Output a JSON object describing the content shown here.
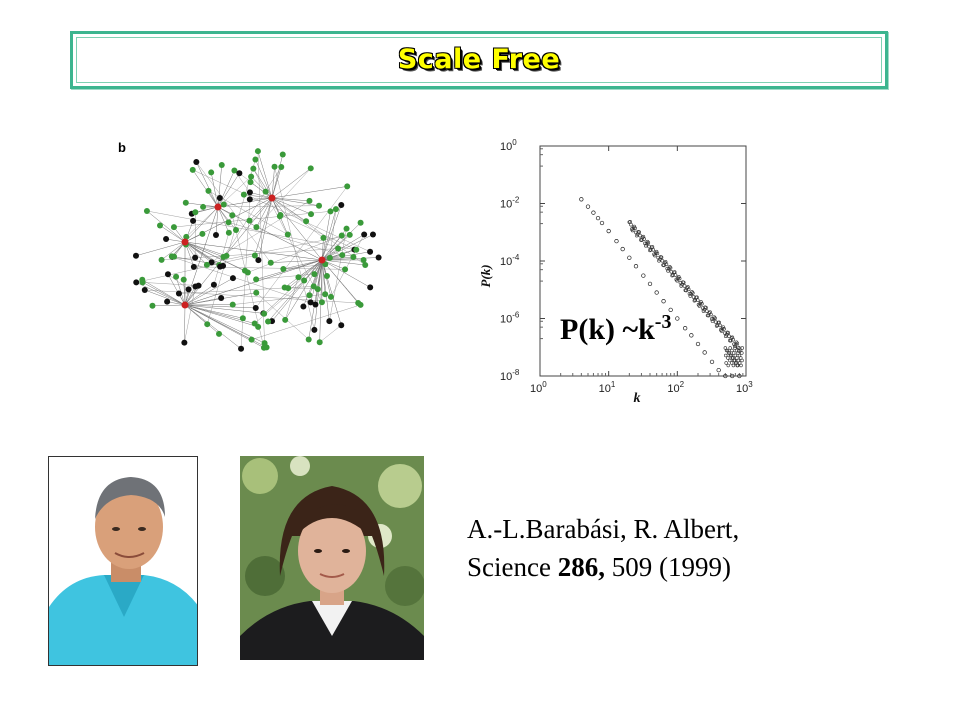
{
  "slide": {
    "title": "Scale Free",
    "panel_label": "b",
    "formula_base": "P(k) ~k",
    "formula_exponent": "-3",
    "citation": {
      "authors": "A.-L.Barabási,  R. Albert,",
      "journal": "Science ",
      "volume": "286,",
      "rest": " 509 (1999)"
    }
  },
  "network": {
    "node_colors": {
      "green": "#3a9a3a",
      "black": "#111111",
      "hub": "#cc2222"
    }
  },
  "plot": {
    "y_ticks": [
      "10",
      "10",
      "10",
      "10",
      "10"
    ],
    "y_tick_exps": [
      "0",
      "-2",
      "-4",
      "-6",
      "-8"
    ],
    "x_ticks": [
      "10",
      "10",
      "10",
      "10"
    ],
    "x_tick_exps": [
      "0",
      "1",
      "2",
      "3"
    ],
    "ylabel": "P(k)",
    "xlabel": "k"
  },
  "chart_data": {
    "type": "scatter",
    "title": "",
    "xlabel": "k",
    "ylabel": "P(k)",
    "x_scale": "log",
    "y_scale": "log",
    "xlim": [
      1,
      1000
    ],
    "ylim": [
      1e-08,
      1
    ],
    "annotation": "P(k) ~k-3",
    "series": [
      {
        "x": [
          4,
          5,
          6,
          7,
          8,
          10,
          13,
          16,
          20,
          25,
          32,
          40,
          50,
          63,
          80,
          100,
          130,
          160,
          200,
          250,
          320,
          400,
          500,
          630,
          800
        ],
        "y": [
          0.014,
          0.0078,
          0.0048,
          0.0031,
          0.0021,
          0.0011,
          0.00049,
          0.00026,
          0.00013,
          6.6e-05,
          3.1e-05,
          1.6e-05,
          8e-06,
          4e-06,
          2e-06,
          1e-06,
          4.6e-07,
          2.6e-07,
          1.3e-07,
          6.6e-08,
          3.1e-08,
          1.6e-08,
          1e-08,
          1e-08,
          1e-08
        ]
      }
    ]
  },
  "photos": {
    "left": {
      "bg": "#ffffff",
      "shirt": "#3fc4e0",
      "skin": "#d9a07a",
      "hair": "#6f7277"
    },
    "right": {
      "bg": "#6b8b4e",
      "jacket": "#1c1c1e",
      "skin": "#e0b39a",
      "hair": "#3b2418"
    }
  }
}
